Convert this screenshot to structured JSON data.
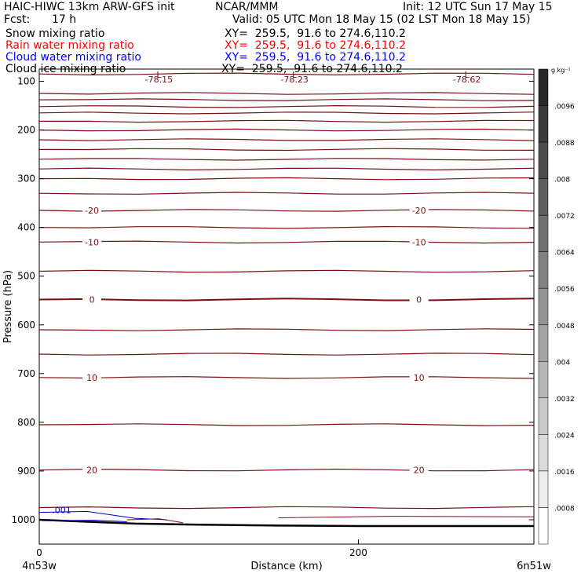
{
  "header": {
    "title": "HAIC-HIWC 13km ARW-GFS init",
    "org": "NCAR/MMM",
    "init": "Init: 12 UTC Sun 17 May 15",
    "fcst_label": "Fcst:",
    "fcst_value": "17 h",
    "valid": "Valid: 05 UTC Mon 18 May 15 (02 LST Mon 18 May 15)"
  },
  "fields": [
    {
      "name": "Snow mixing ratio",
      "xy": "XY=  259.5,  91.6 to 274.6,110.2",
      "color": "#000000"
    },
    {
      "name": "Rain water mixing ratio",
      "xy": "XY=  259.5,  91.6 to 274.6,110.2",
      "color": "#ff0000"
    },
    {
      "name": "Cloud water mixing ratio",
      "xy": "XY=  259.5,  91.6 to 274.6,110.2",
      "color": "#0000ff"
    },
    {
      "name": "Cloud ice mixing ratio",
      "xy": "XY=  259.5,  91.6 to 274.6,110.2",
      "color": "#000000"
    }
  ],
  "chart_data": {
    "type": "contour",
    "xlabel": "Distance (km)",
    "ylabel": "Pressure (hPa)",
    "x_ticks": [
      0,
      200
    ],
    "y_ticks": [
      100,
      200,
      300,
      400,
      500,
      600,
      700,
      800,
      900,
      1000
    ],
    "xlim": [
      0,
      310
    ],
    "ylim": [
      1050,
      75
    ],
    "x_end_labels": [
      "4n53w",
      "6n51w"
    ],
    "temperature_isotherm_labels": [
      {
        "text": "-20",
        "x": [
          33,
          238
        ],
        "p": 365
      },
      {
        "text": "-10",
        "x": [
          33,
          238
        ],
        "p": 430
      },
      {
        "text": "0",
        "x": [
          33,
          238
        ],
        "p": 548
      },
      {
        "text": "10",
        "x": [
          33,
          238
        ],
        "p": 708
      },
      {
        "text": "20",
        "x": [
          33,
          238
        ],
        "p": 898
      }
    ],
    "isotherm_pressures": [
      85,
      125,
      138,
      152,
      165,
      182,
      200,
      220,
      240,
      260,
      280,
      300,
      330,
      365,
      400,
      430,
      490,
      548,
      610,
      660,
      708,
      805,
      898,
      975
    ],
    "low_labels": [
      {
        "letter": "L",
        "value": "-78.15",
        "x": 75
      },
      {
        "letter": "L",
        "value": "-78.23",
        "x": 160
      },
      {
        "letter": "L",
        "value": "-78.62",
        "x": 268
      }
    ],
    "cloud_water_label": ".001",
    "colorbar": {
      "unit": "g kg⁻¹",
      "ticks": [
        ".0096",
        ".0088",
        ".008",
        ".0072",
        ".0064",
        ".0056",
        ".0048",
        ".004",
        ".0032",
        ".0024",
        ".0016",
        ".0008"
      ]
    }
  }
}
